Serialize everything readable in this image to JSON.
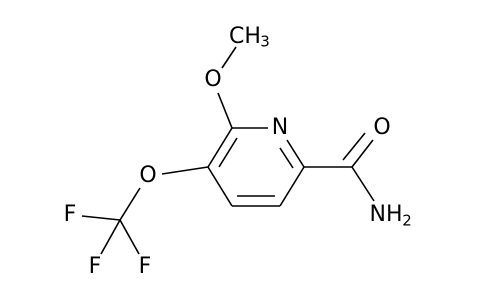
{
  "nodes": [
    {
      "label": "CH",
      "subscript": "3"
    },
    {
      "label": "O"
    },
    {
      "label": "N"
    },
    {
      "label": "O"
    },
    {
      "label": "NH",
      "subscript": "2"
    },
    {
      "label": "O"
    },
    {
      "label": "F"
    },
    {
      "label": "F"
    },
    {
      "label": "F"
    }
  ]
}
